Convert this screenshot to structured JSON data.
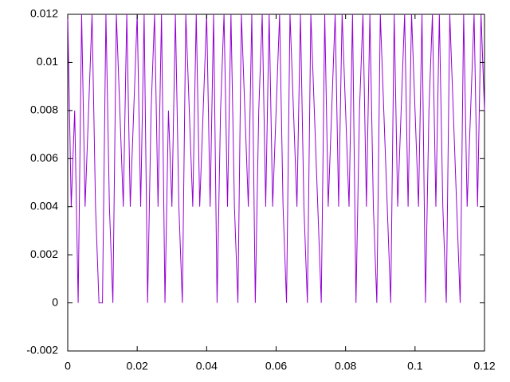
{
  "chart_data": {
    "type": "line",
    "x": [
      0,
      0.001,
      0.002,
      0.003,
      0.004,
      0.005,
      0.006,
      0.007,
      0.008,
      0.009,
      0.01,
      0.011,
      0.012,
      0.013,
      0.014,
      0.015,
      0.016,
      0.017,
      0.018,
      0.019,
      0.02,
      0.021,
      0.022,
      0.023,
      0.024,
      0.025,
      0.026,
      0.027,
      0.028,
      0.029,
      0.03,
      0.031,
      0.032,
      0.033,
      0.034,
      0.035,
      0.036,
      0.037,
      0.038,
      0.039,
      0.04,
      0.041,
      0.042,
      0.043,
      0.044,
      0.045,
      0.046,
      0.047,
      0.048,
      0.049,
      0.05,
      0.051,
      0.052,
      0.053,
      0.054,
      0.055,
      0.056,
      0.057,
      0.058,
      0.059,
      0.06,
      0.061,
      0.062,
      0.063,
      0.064,
      0.065,
      0.066,
      0.067,
      0.068,
      0.069,
      0.07,
      0.071,
      0.072,
      0.073,
      0.074,
      0.075,
      0.076,
      0.077,
      0.078,
      0.079,
      0.08,
      0.081,
      0.082,
      0.083,
      0.084,
      0.085,
      0.086,
      0.087,
      0.088,
      0.089,
      0.09,
      0.091,
      0.092,
      0.093,
      0.094,
      0.095,
      0.096,
      0.097,
      0.098,
      0.099,
      0.1,
      0.101,
      0.102,
      0.103,
      0.104,
      0.105,
      0.106,
      0.107,
      0.108,
      0.109,
      0.11,
      0.111,
      0.112,
      0.113,
      0.114,
      0.115,
      0.116,
      0.117,
      0.118,
      0.119,
      0.12
    ],
    "series": [
      {
        "color": "#9400d3",
        "values": [
          0.012,
          0.004,
          0.008,
          0,
          0.012,
          0.004,
          0.008,
          0.012,
          0.004,
          0,
          0,
          0.012,
          0.004,
          0,
          0.012,
          0.008,
          0.004,
          0.012,
          0.004,
          0.008,
          0.012,
          0.004,
          0.012,
          0,
          0.008,
          0.012,
          0.004,
          0.012,
          0,
          0.008,
          0.004,
          0.012,
          0.004,
          0,
          0.012,
          0.008,
          0.004,
          0.012,
          0.004,
          0.008,
          0.012,
          0.004,
          0.012,
          0,
          0.008,
          0.012,
          0.004,
          0.012,
          0.004,
          0,
          0.012,
          0.008,
          0.004,
          0.012,
          0,
          0.008,
          0.012,
          0.004,
          0.012,
          0.004,
          0.008,
          0.012,
          0.004,
          0,
          0.012,
          0.008,
          0.004,
          0.012,
          0.004,
          0,
          0.012,
          0.008,
          0.004,
          0,
          0.012,
          0.004,
          0.008,
          0.012,
          0.004,
          0.012,
          0.008,
          0.004,
          0.012,
          0,
          0.008,
          0.012,
          0.004,
          0.012,
          0.004,
          0,
          0.012,
          0.008,
          0.004,
          0,
          0.012,
          0.004,
          0.008,
          0.012,
          0.004,
          0.012,
          0.008,
          0.004,
          0.012,
          0,
          0.008,
          0.012,
          0.004,
          0.012,
          0.004,
          0,
          0.012,
          0.008,
          0.004,
          0,
          0.012,
          0.004,
          0.008,
          0.012,
          0.004,
          0.012,
          0.008
        ]
      }
    ],
    "xlim": [
      0,
      0.12
    ],
    "ylim": [
      -0.002,
      0.012
    ],
    "xticks": [
      0,
      0.02,
      0.04,
      0.06,
      0.08,
      0.1,
      0.12
    ],
    "yticks": [
      -0.002,
      0,
      0.002,
      0.004,
      0.006,
      0.008,
      0.01,
      0.012
    ]
  }
}
